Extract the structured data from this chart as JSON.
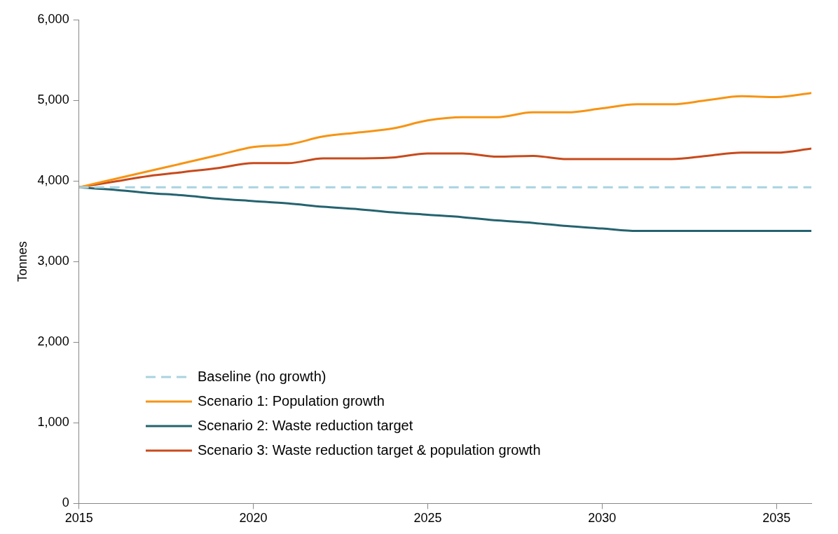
{
  "chart_data": {
    "type": "line",
    "ylabel": "Tonnes",
    "x": [
      2015,
      2016,
      2017,
      2018,
      2019,
      2020,
      2021,
      2022,
      2023,
      2024,
      2025,
      2026,
      2027,
      2028,
      2029,
      2030,
      2031,
      2032,
      2033,
      2034,
      2035,
      2036
    ],
    "xlim": [
      2015,
      2036
    ],
    "xticks": [
      2015,
      2020,
      2025,
      2030,
      2035
    ],
    "ylim": [
      0,
      6000
    ],
    "yticks": [
      {
        "value": 0,
        "label": "0"
      },
      {
        "value": 1000,
        "label": "1,000"
      },
      {
        "value": 2000,
        "label": "2,000"
      },
      {
        "value": 3000,
        "label": "3,000"
      },
      {
        "value": 4000,
        "label": "4,000"
      },
      {
        "value": 5000,
        "label": "5,000"
      },
      {
        "value": 6000,
        "label": "6,000"
      }
    ],
    "grid": false,
    "legend": "bottom left",
    "marker": "none",
    "series": [
      {
        "name": "Baseline (no growth)",
        "color": "#a9d3e0",
        "line_style": "dashed",
        "values": [
          3920,
          3920,
          3920,
          3920,
          3920,
          3920,
          3920,
          3920,
          3920,
          3920,
          3920,
          3920,
          3920,
          3920,
          3920,
          3920,
          3920,
          3920,
          3920,
          3920,
          3920,
          3920
        ]
      },
      {
        "name": "Scenario 1: Population growth",
        "color": "#f79414",
        "line_style": "solid",
        "values": [
          3920,
          4020,
          4120,
          4220,
          4320,
          4420,
          4450,
          4550,
          4600,
          4650,
          4750,
          4790,
          4790,
          4850,
          4850,
          4900,
          4950,
          4950,
          5000,
          5050,
          5040,
          5090
        ]
      },
      {
        "name": "Scenario 2: Waste reduction target",
        "color": "#25636f",
        "line_style": "solid",
        "values": [
          3920,
          3890,
          3850,
          3820,
          3780,
          3750,
          3720,
          3680,
          3650,
          3610,
          3580,
          3550,
          3510,
          3480,
          3440,
          3410,
          3380,
          3380,
          3380,
          3380,
          3380,
          3380
        ]
      },
      {
        "name": "Scenario 3: Waste reduction target & population growth",
        "color": "#c84a1c",
        "line_style": "solid",
        "values": [
          3920,
          3990,
          4060,
          4110,
          4160,
          4220,
          4220,
          4280,
          4280,
          4290,
          4340,
          4340,
          4300,
          4310,
          4270,
          4270,
          4270,
          4270,
          4310,
          4350,
          4350,
          4400
        ]
      }
    ]
  }
}
